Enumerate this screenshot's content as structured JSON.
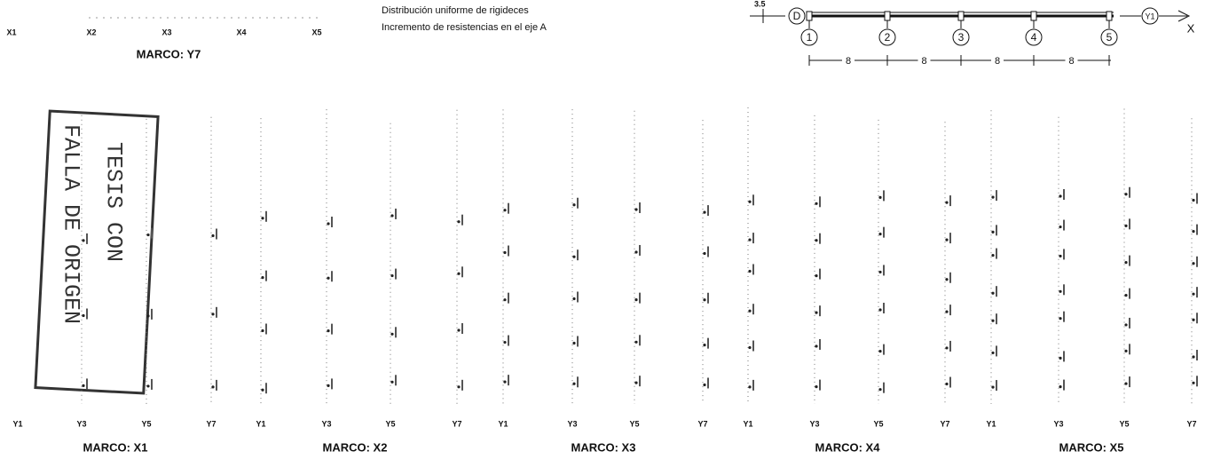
{
  "header": {
    "legend": [
      "Distribución uniforme de rigideces",
      "Incremento de resistencias en el eje A"
    ]
  },
  "frame_y7": {
    "title": "MARCO: Y7",
    "axis_labels": [
      "X1",
      "X2",
      "X3",
      "X4",
      "X5"
    ]
  },
  "plan": {
    "height_label": "3.5",
    "row_label": "D",
    "column_labels": [
      "1",
      "2",
      "3",
      "4",
      "5"
    ],
    "end_label": "Y1",
    "axis_label": "X",
    "spans": [
      "8",
      "8",
      "8",
      "8"
    ]
  },
  "stamp": {
    "lines": [
      "TESIS CON",
      "FALLA DE ORIGEN"
    ]
  },
  "frames": [
    {
      "title": "MARCO: X1",
      "axis_labels": [
        "Y1",
        "Y3",
        "Y5",
        "Y7"
      ]
    },
    {
      "title": "MARCO: X2",
      "axis_labels": [
        "Y1",
        "Y3",
        "Y5",
        "Y7"
      ]
    },
    {
      "title": "MARCO: X3",
      "axis_labels": [
        "Y1",
        "Y3",
        "Y5",
        "Y7"
      ]
    },
    {
      "title": "MARCO: X4",
      "axis_labels": [
        "Y1",
        "Y3",
        "Y5",
        "Y7"
      ]
    },
    {
      "title": "MARCO: X5",
      "axis_labels": [
        "Y1",
        "Y3",
        "Y5",
        "Y7"
      ]
    }
  ]
}
